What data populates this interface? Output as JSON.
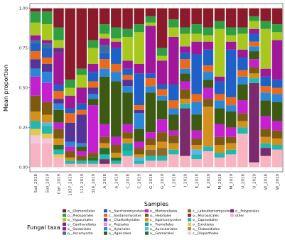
{
  "chart_data": {
    "type": "stacked-bar",
    "x_label": "Samples",
    "y_label": "Mean proportion",
    "legend_title": "Fungal taxa",
    "categories": [
      "Soil_2018",
      "Soil_2019",
      "Carr_2019",
      "1037_2019",
      "112_2019",
      "326_2019",
      "A_2018",
      "A_2019",
      "C_2018",
      "C_2019",
      "G_2018",
      "G_2019",
      "I_2018",
      "I_2019",
      "K_2018",
      "K_2019",
      "M_2018",
      "M_2019",
      "U_2018",
      "U_2019",
      "W_2018",
      "W_2019"
    ],
    "ylim": [
      -0.03,
      1.03
    ],
    "yticks": [
      {
        "value": 0,
        "label": "0.00"
      },
      {
        "value": 0.25,
        "label": "0.25"
      },
      {
        "value": 0.5,
        "label": "0.50"
      },
      {
        "value": 0.75,
        "label": "0.75"
      },
      {
        "value": 1,
        "label": "1.00"
      }
    ],
    "grid": true,
    "series": [
      {
        "name": "o__Glomerellales",
        "color": "#8b1a2b",
        "values": [
          0.02,
          0.02,
          0.12,
          0.45,
          0.38,
          0.2,
          0.1,
          0.12,
          0.13,
          0.1,
          0.05,
          0.25,
          0.07,
          0.12,
          0.1,
          0.12,
          0.08,
          0.12,
          0.12,
          0.05,
          0.08,
          0.1
        ]
      },
      {
        "name": "o__Pleosporales",
        "color": "#2ea043",
        "values": [
          0.07,
          0.08,
          0.08,
          0.05,
          0.04,
          0.05,
          0.06,
          0.07,
          0.05,
          0.05,
          0.04,
          0.05,
          0.05,
          0.04,
          0.06,
          0.05,
          0.05,
          0.05,
          0.04,
          0.03,
          0.05,
          0.05
        ]
      },
      {
        "name": "o__Hypocreales",
        "color": "#a8c81e",
        "values": [
          0.08,
          0.1,
          0.05,
          0.05,
          0.08,
          0.1,
          0.03,
          0.02,
          0.15,
          0.2,
          0.02,
          0.03,
          0.06,
          0.08,
          0.05,
          0.04,
          0.3,
          0.04,
          0.1,
          0.05,
          0.25,
          0.05
        ]
      },
      {
        "name": "o__Cantharellales",
        "color": "#6a2c91",
        "values": [
          0,
          0,
          0.03,
          0,
          0,
          0,
          0,
          0,
          0,
          0,
          0,
          0,
          0,
          0,
          0,
          0,
          0,
          0,
          0,
          0,
          0,
          0
        ]
      },
      {
        "name": "o__Sordariales",
        "color": "#a0179a",
        "values": [
          0.03,
          0.02,
          0.2,
          0.08,
          0.1,
          0.05,
          0.04,
          0.04,
          0.05,
          0.06,
          0.3,
          0.15,
          0.3,
          0.04,
          0.08,
          0.05,
          0.03,
          0.05,
          0.05,
          0.03,
          0.05,
          0.25
        ]
      },
      {
        "name": "p__Ascomycota",
        "color": "#3b6e9e",
        "values": [
          0.02,
          0.03,
          0,
          0,
          0,
          0,
          0.05,
          0,
          0,
          0,
          0,
          0,
          0,
          0,
          0,
          0,
          0,
          0,
          0,
          0,
          0,
          0
        ]
      },
      {
        "name": "o__Saccharomycetales",
        "color": "#1f5fc8",
        "values": [
          0.05,
          0.06,
          0.04,
          0.03,
          0.04,
          0.06,
          0.04,
          0.1,
          0.04,
          0.2,
          0.03,
          0.03,
          0.1,
          0.04,
          0.25,
          0.1,
          0.08,
          0.3,
          0.08,
          0.05,
          0.06,
          0.05
        ]
      },
      {
        "name": "c__Sordariomycetes",
        "color": "#ea6a1c",
        "values": [
          0.05,
          0.04,
          0.05,
          0.06,
          0.03,
          0.04,
          0.06,
          0.05,
          0.03,
          0.03,
          0.05,
          0.04,
          0.05,
          0.06,
          0.05,
          0.04,
          0.04,
          0.05,
          0.04,
          0.03,
          0.04,
          0.04
        ]
      },
      {
        "name": "o__Chaetothyriales",
        "color": "#55349a",
        "values": [
          0.06,
          0.05,
          0.03,
          0.12,
          0.18,
          0.04,
          0,
          0,
          0.04,
          0.02,
          0,
          0,
          0,
          0,
          0,
          0,
          0,
          0,
          0,
          0,
          0,
          0
        ]
      },
      {
        "name": "o__Pezizales",
        "color": "#e58fd4",
        "values": [
          0,
          0,
          0,
          0,
          0,
          0,
          0,
          0,
          0,
          0,
          0,
          0,
          0,
          0,
          0,
          0,
          0,
          0,
          0,
          0,
          0,
          0
        ]
      },
      {
        "name": "o__Xylariales",
        "color": "#2a86d8",
        "values": [
          0.05,
          0.07,
          0.04,
          0.03,
          0.02,
          0.03,
          0.05,
          0.06,
          0.04,
          0.1,
          0.04,
          0.03,
          0.04,
          0.03,
          0.08,
          0.05,
          0.05,
          0.04,
          0.05,
          0.03,
          0.05,
          0.05
        ]
      },
      {
        "name": "o__Agaricales",
        "color": "#3d5a12",
        "values": [
          0,
          0,
          0.08,
          0,
          0.03,
          0.04,
          0.3,
          0.35,
          0.2,
          0.08,
          0.25,
          0.12,
          0.1,
          0.05,
          0.1,
          0.05,
          0.1,
          0.1,
          0.1,
          0.05,
          0.1,
          0.12
        ]
      },
      {
        "name": "o__Mortierellales",
        "color": "#c41fd0",
        "values": [
          0.12,
          0.12,
          0.04,
          0.03,
          0.03,
          0.3,
          0.08,
          0.05,
          0.05,
          0.04,
          0.04,
          0.08,
          0.03,
          0.05,
          0.05,
          0.07,
          0.08,
          0.06,
          0.08,
          0.05,
          0.08,
          0.06
        ]
      },
      {
        "name": "o__Helotiales",
        "color": "#7d5a12",
        "values": [
          0.1,
          0.08,
          0.06,
          0.04,
          0.03,
          0.03,
          0.04,
          0.05,
          0.04,
          0.04,
          0.04,
          0.06,
          0.05,
          0.06,
          0.04,
          0.05,
          0.05,
          0.04,
          0.05,
          0.04,
          0.05,
          0.05
        ]
      },
      {
        "name": "c__Agaricomycetes",
        "color": "#d3901c",
        "values": [
          0.06,
          0.05,
          0.04,
          0.02,
          0,
          0,
          0.03,
          0.03,
          0.03,
          0.02,
          0.03,
          0.04,
          0.04,
          0.03,
          0.03,
          0.25,
          0.05,
          0.04,
          0.04,
          0.03,
          0.04,
          0.04
        ]
      },
      {
        "name": "o__Tremellales",
        "color": "#17a398",
        "values": [
          0,
          0,
          0,
          0,
          0,
          0,
          0,
          0,
          0.05,
          0,
          0,
          0,
          0,
          0,
          0,
          0,
          0,
          0,
          0,
          0,
          0,
          0
        ]
      },
      {
        "name": "o__Auriculariales",
        "color": "#58b6ea",
        "values": [
          0,
          0.02,
          0,
          0,
          0,
          0,
          0,
          0,
          0,
          0.02,
          0,
          0,
          0,
          0,
          0.03,
          0,
          0,
          0,
          0,
          0,
          0,
          0
        ]
      },
      {
        "name": "o__Glomerales",
        "color": "#24702c",
        "values": [
          0,
          0,
          0.03,
          0,
          0,
          0.02,
          0.04,
          0.02,
          0,
          0,
          0,
          0,
          0,
          0,
          0,
          0,
          0,
          0,
          0,
          0,
          0,
          0
        ]
      },
      {
        "name": "c__Laboulbeniomycetes",
        "color": "#8a6b2c",
        "values": [
          0,
          0,
          0,
          0,
          0,
          0,
          0,
          0,
          0,
          0,
          0.04,
          0.05,
          0,
          0,
          0,
          0,
          0,
          0,
          0,
          0,
          0,
          0
        ]
      },
      {
        "name": "o__Microascales",
        "color": "#b51f3c",
        "values": [
          0,
          0,
          0,
          0,
          0,
          0,
          0,
          0,
          0,
          0,
          0,
          0,
          0,
          0,
          0,
          0,
          0,
          0,
          0,
          0,
          0,
          0
        ]
      },
      {
        "name": "o__Capnodiales",
        "color": "#22b8b0",
        "values": [
          0.05,
          0.05,
          0.03,
          0.02,
          0.02,
          0.02,
          0.03,
          0.02,
          0.03,
          0.02,
          0.03,
          0.03,
          0.03,
          0.03,
          0.03,
          0.03,
          0.03,
          0.03,
          0.04,
          0.03,
          0.03,
          0.03
        ]
      },
      {
        "name": "o__Eurotiales",
        "color": "#e8c84a",
        "values": [
          0.04,
          0.03,
          0.02,
          0,
          0,
          0,
          0,
          0,
          0,
          0,
          0,
          0,
          0,
          0,
          0,
          0,
          0,
          0,
          0,
          0,
          0,
          0
        ]
      },
      {
        "name": "o__Filobasidiales",
        "color": "#9a9a3a",
        "values": [
          0,
          0,
          0,
          0,
          0,
          0,
          0,
          0,
          0,
          0,
          0,
          0,
          0,
          0,
          0,
          0,
          0,
          0,
          0,
          0,
          0,
          0
        ]
      },
      {
        "name": "c__Diaporthales",
        "color": "#f3c6e0",
        "values": [
          0.05,
          0.03,
          0,
          0,
          0,
          0,
          0,
          0,
          0,
          0,
          0,
          0,
          0,
          0,
          0,
          0,
          0,
          0,
          0,
          0,
          0,
          0
        ]
      },
      {
        "name": "o__Polyporales",
        "color": "#7b2a6e",
        "values": [
          0,
          0,
          0,
          0,
          0,
          0,
          0.03,
          0,
          0,
          0,
          0,
          0,
          0,
          0.3,
          0,
          0,
          0,
          0,
          0,
          0.5,
          0.05,
          0
        ]
      },
      {
        "name": "other",
        "color": "#f8b4c0",
        "values": [
          0.15,
          0.15,
          0.06,
          0.02,
          0.02,
          0.02,
          0.02,
          0.02,
          0.07,
          0.02,
          0.04,
          0.04,
          0.08,
          0.07,
          0.05,
          0.1,
          0.06,
          0.08,
          0.21,
          0.03,
          0.07,
          0.11
        ]
      }
    ]
  }
}
